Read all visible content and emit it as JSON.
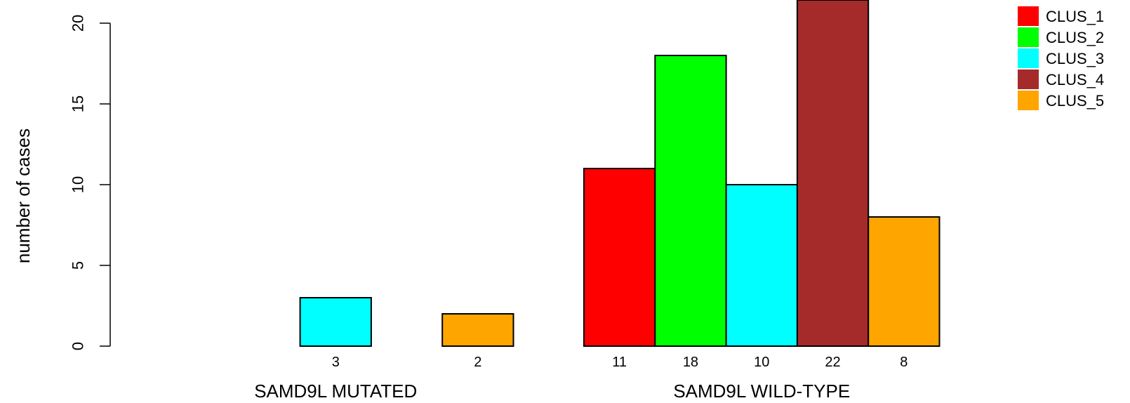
{
  "chart_data": {
    "type": "bar",
    "ylabel": "number of cases",
    "ylim": [
      0,
      22
    ],
    "yticks": [
      0,
      5,
      10,
      15,
      20
    ],
    "groups": [
      {
        "label": "SAMD9L MUTATED",
        "values": [
          0,
          0,
          3,
          0,
          2
        ],
        "count_labels": [
          "",
          "",
          "3",
          "",
          "2"
        ]
      },
      {
        "label": "SAMD9L WILD-TYPE",
        "values": [
          11,
          18,
          10,
          22,
          8
        ],
        "count_labels": [
          "11",
          "18",
          "10",
          "22",
          "8"
        ]
      }
    ],
    "series": [
      {
        "name": "CLUS_1",
        "color": "#ff0000"
      },
      {
        "name": "CLUS_2",
        "color": "#00ff00"
      },
      {
        "name": "CLUS_3",
        "color": "#00ffff"
      },
      {
        "name": "CLUS_4",
        "color": "#a52a2a"
      },
      {
        "name": "CLUS_5",
        "color": "#ffa500"
      }
    ],
    "legend_position": "top-right",
    "grid": false
  }
}
